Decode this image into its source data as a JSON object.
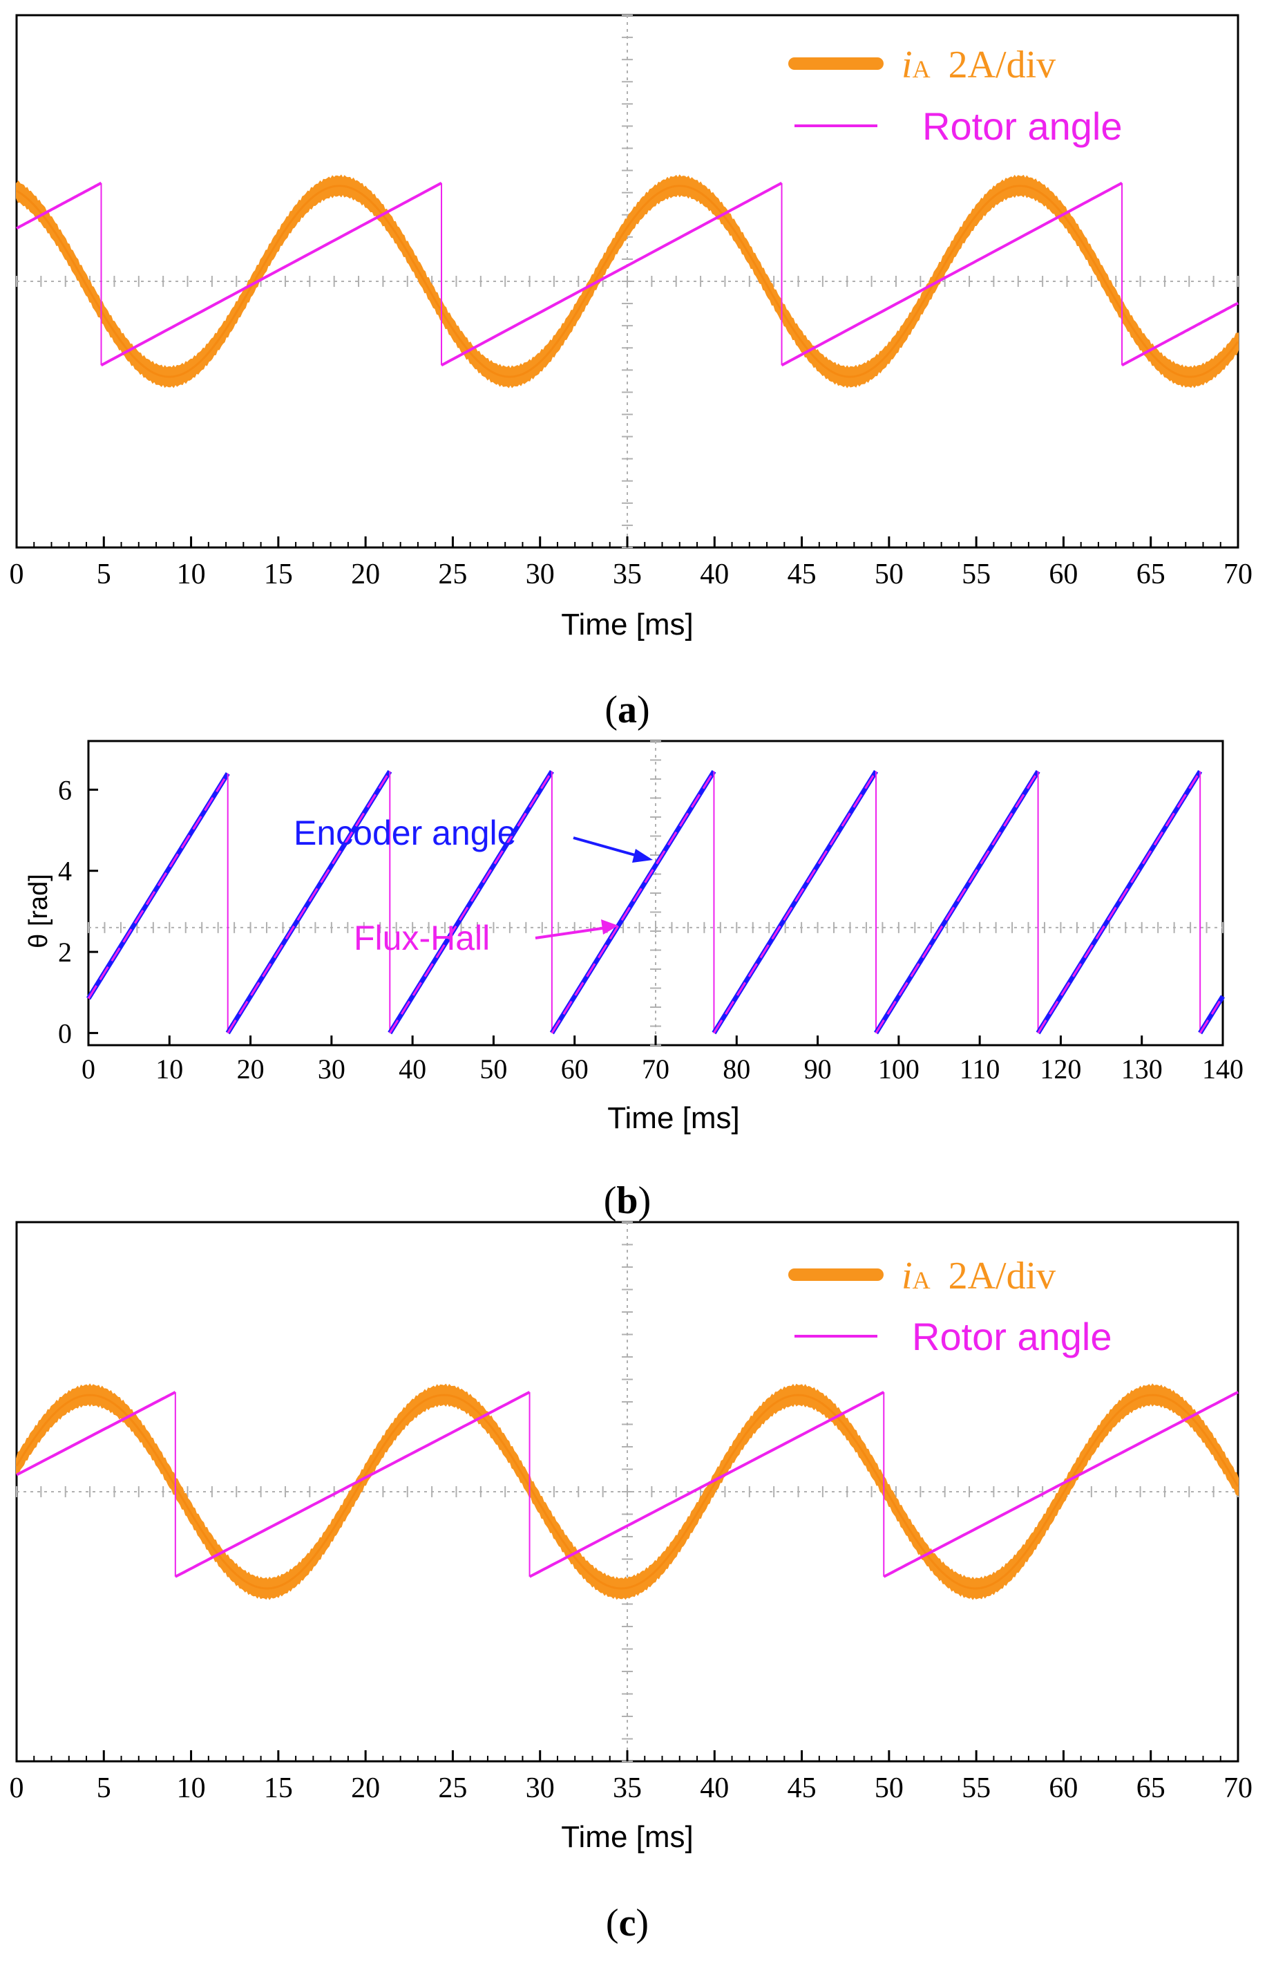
{
  "colors": {
    "current": "#f7941d",
    "rotor": "#ee22ee",
    "encoder": "#1a1aff",
    "axis": "#000000",
    "grid": "#b0b0b0"
  },
  "chart_data": [
    {
      "type": "line",
      "panel_label": "a",
      "title": "",
      "xlabel": "Time [ms]",
      "ylabel": "",
      "xlim": [
        0,
        70
      ],
      "ylim": [
        -4.6,
        4.6
      ],
      "x_ticks": [
        "0",
        "5",
        "10",
        "15",
        "20",
        "25",
        "30",
        "35",
        "40",
        "45",
        "50",
        "55",
        "60",
        "65",
        "70"
      ],
      "legend_position": "top-right",
      "series": [
        {
          "name": "iA",
          "legend_label_italic": "i",
          "legend_label_sub": "A",
          "legend_label_rest": "2A/div",
          "kind": "current",
          "period_ms": 19.5,
          "phase_peak_ms": 18.5,
          "amplitude_div": 1.65,
          "noise_div": 0.18
        },
        {
          "name": "Rotor angle",
          "legend_label": "Rotor angle",
          "kind": "rotor",
          "period_ms": 19.5,
          "wrap_ms": [
            4.85,
            24.35,
            43.85,
            63.35
          ],
          "low_div": -1.45,
          "high_div": 1.7
        }
      ]
    },
    {
      "type": "line",
      "panel_label": "b",
      "title": "",
      "xlabel": "Time [ms]",
      "ylabel": "θ [rad]",
      "xlim": [
        0,
        140
      ],
      "ylim": [
        -0.3,
        7.2
      ],
      "x_ticks": [
        "0",
        "10",
        "20",
        "30",
        "40",
        "50",
        "60",
        "70",
        "80",
        "90",
        "100",
        "110",
        "120",
        "130",
        "140"
      ],
      "y_ticks": [
        "0",
        "2",
        "4",
        "6"
      ],
      "annotations": [
        {
          "text": "Encoder angle",
          "points_to_ms": 64.5,
          "points_to_rad": 4.3,
          "color": "encoder"
        },
        {
          "text": "Flux-Hall",
          "points_to_ms": 63.0,
          "points_to_rad": 2.6,
          "color": "rotor"
        }
      ],
      "series": [
        {
          "name": "Encoder angle",
          "kind": "encoder",
          "wraps_ms": [
            17.2,
            37.2,
            57.2,
            77.2,
            97.2,
            117.2,
            137.2
          ],
          "start_rad": 0.85,
          "max_rad": 6.4
        },
        {
          "name": "Flux-Hall",
          "kind": "rotor",
          "wraps_ms": [
            17.2,
            37.2,
            57.2,
            77.2,
            97.2,
            117.2,
            137.2
          ],
          "start_rad": 0.85,
          "max_rad": 6.4
        }
      ]
    },
    {
      "type": "line",
      "panel_label": "c",
      "title": "",
      "xlabel": "Time [ms]",
      "ylabel": "",
      "xlim": [
        0,
        70
      ],
      "ylim": [
        -4.6,
        4.6
      ],
      "x_ticks": [
        "0",
        "5",
        "10",
        "15",
        "20",
        "25",
        "30",
        "35",
        "40",
        "45",
        "50",
        "55",
        "60",
        "65",
        "70"
      ],
      "legend_position": "top-right",
      "series": [
        {
          "name": "iA",
          "legend_label_italic": "i",
          "legend_label_sub": "A",
          "legend_label_rest": "2A/div",
          "kind": "current",
          "period_ms": 20.3,
          "phase_peak_ms": 4.2,
          "amplitude_div": 1.65,
          "noise_div": 0.18
        },
        {
          "name": "Rotor angle",
          "legend_label": "Rotor angle",
          "kind": "rotor",
          "period_ms": 20.3,
          "wrap_ms": [
            9.1,
            29.4,
            49.7
          ],
          "low_div": -1.45,
          "high_div": 1.7
        }
      ]
    }
  ]
}
